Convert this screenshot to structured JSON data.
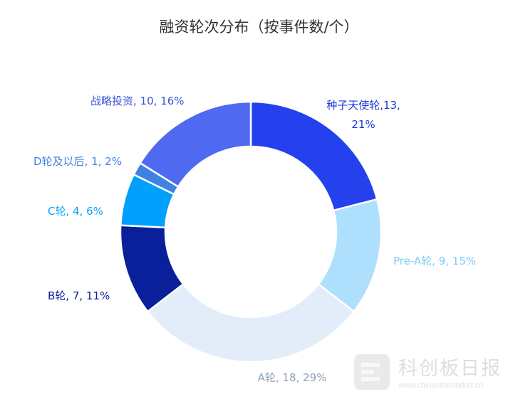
{
  "chart_data": {
    "type": "pie",
    "title": "融资轮次分布（按事件数/个）",
    "donut": true,
    "slices": [
      {
        "name": "种子天使轮",
        "value": 13,
        "percent": "21%",
        "label_lines": [
          "种子天使轮,13,",
          "21%"
        ],
        "color": "#2541ed",
        "label_color": "#1d38d6"
      },
      {
        "name": "Pre-A轮",
        "value": 9,
        "percent": "15%",
        "label_lines": [
          "Pre-A轮, 9, 15%"
        ],
        "color": "#aee0fd",
        "label_color": "#7ccdf8"
      },
      {
        "name": "A轮",
        "value": 18,
        "percent": "29%",
        "label_lines": [
          "A轮, 18, 29%"
        ],
        "color": "#e3edf9",
        "label_color": "#8fa0b8"
      },
      {
        "name": "B轮",
        "value": 7,
        "percent": "11%",
        "label_lines": [
          "B轮, 7, 11%"
        ],
        "color": "#0a1f9a",
        "label_color": "#0a1f9a"
      },
      {
        "name": "C轮",
        "value": 4,
        "percent": "6%",
        "label_lines": [
          "C轮, 4, 6%"
        ],
        "color": "#00a0fc",
        "label_color": "#0aa0f5"
      },
      {
        "name": "D轮及以后",
        "value": 1,
        "percent": "2%",
        "label_lines": [
          "D轮及以后, 1, 2%"
        ],
        "color": "#3f82e4",
        "label_color": "#3f82e4"
      },
      {
        "name": "战略投资",
        "value": 10,
        "percent": "16%",
        "label_lines": [
          "战略投资, 10, 16%"
        ],
        "color": "#4f6af0",
        "label_color": "#3b55d6"
      }
    ]
  },
  "watermark": {
    "name": "科创板日报",
    "url": "www.chinastarmarket.cn"
  }
}
